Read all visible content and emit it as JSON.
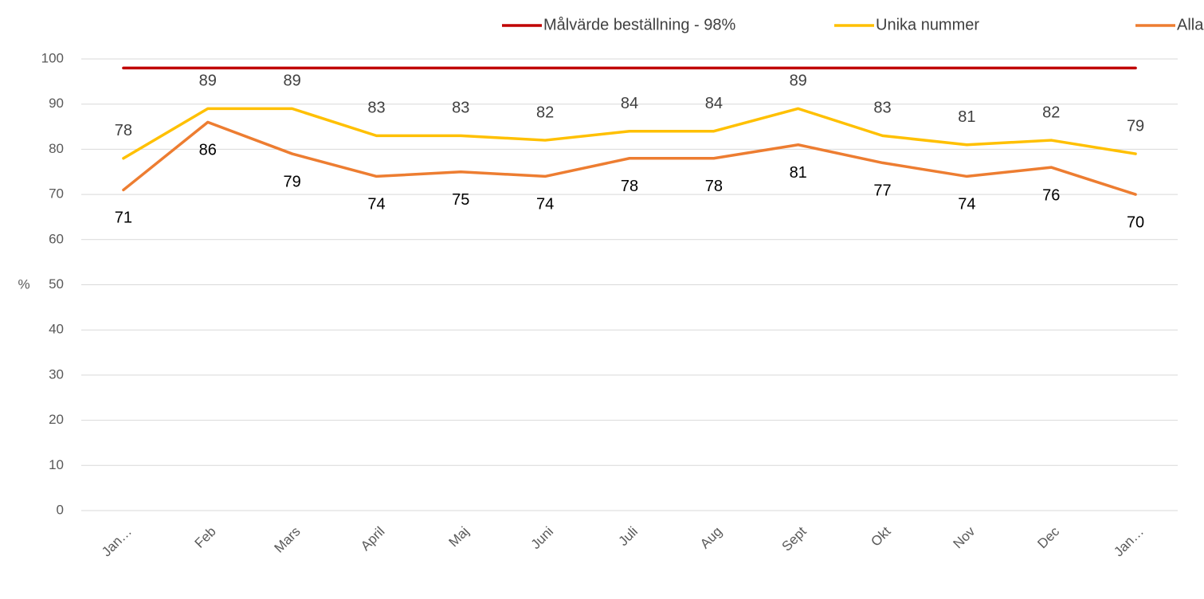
{
  "chart_data": {
    "type": "line",
    "y_label": "%",
    "categories": [
      "Jan…",
      "Feb",
      "Mars",
      "April",
      "Maj",
      "Juni",
      "Juli",
      "Aug",
      "Sept",
      "Okt",
      "Nov",
      "Dec",
      "Jan…"
    ],
    "series": [
      {
        "name": "Målvärde beställning - 98%",
        "color": "#c00000",
        "data_labels": false,
        "values": [
          98,
          98,
          98,
          98,
          98,
          98,
          98,
          98,
          98,
          98,
          98,
          98,
          98
        ]
      },
      {
        "name": "Unika nummer",
        "color": "#ffc000",
        "data_labels": true,
        "label_color": "#404040",
        "values": [
          78,
          89,
          89,
          83,
          83,
          82,
          84,
          84,
          89,
          83,
          81,
          82,
          79
        ]
      },
      {
        "name": "Alla samtal",
        "color": "#ed7d31",
        "data_labels": true,
        "label_color": "#000000",
        "values": [
          71,
          86,
          79,
          74,
          75,
          74,
          78,
          78,
          81,
          77,
          74,
          76,
          70
        ]
      }
    ],
    "ylim": [
      0,
      100
    ],
    "yticks": [
      0,
      10,
      20,
      30,
      40,
      50,
      60,
      70,
      80,
      90,
      100
    ],
    "grid": true,
    "legend": "top"
  }
}
